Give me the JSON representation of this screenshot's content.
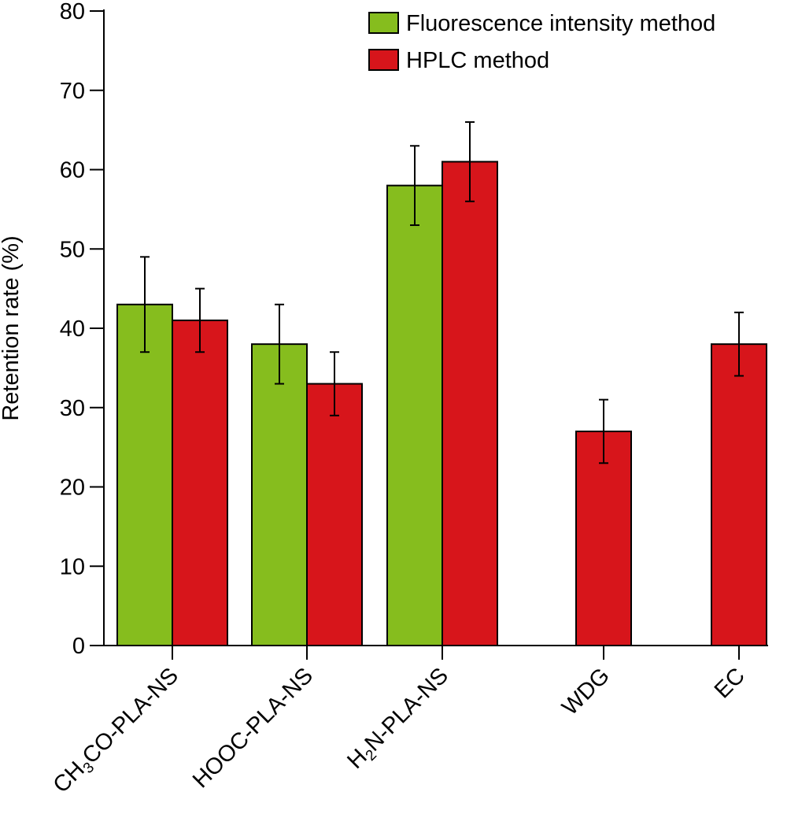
{
  "chart_data": {
    "type": "bar",
    "title": "",
    "xlabel": "",
    "ylabel": "Retention rate (%)",
    "ylim": [
      0,
      80
    ],
    "yticks": [
      0,
      10,
      20,
      30,
      40,
      50,
      60,
      70,
      80
    ],
    "grid": false,
    "legend_position": "top-right",
    "categories": [
      {
        "text": "CH3CO-PLA-NS",
        "parts": [
          {
            "t": "CH"
          },
          {
            "t": "3",
            "sub": true
          },
          {
            "t": "CO-PLA-NS"
          }
        ]
      },
      {
        "text": "HOOC-PLA-NS",
        "parts": [
          {
            "t": "HOOC-PLA-NS"
          }
        ]
      },
      {
        "text": "H2N-PLA-NS",
        "parts": [
          {
            "t": "H"
          },
          {
            "t": "2",
            "sub": true
          },
          {
            "t": "N-PLA-NS"
          }
        ]
      },
      {
        "text": "WDG",
        "parts": [
          {
            "t": "WDG"
          }
        ]
      },
      {
        "text": "EC",
        "parts": [
          {
            "t": "EC"
          }
        ]
      }
    ],
    "series": [
      {
        "name": "Fluorescence intensity method",
        "color": "#86bd1e",
        "values": [
          43,
          38,
          58,
          null,
          null
        ],
        "errors": [
          6,
          5,
          5,
          null,
          null
        ]
      },
      {
        "name": "HPLC method",
        "color": "#d7151b",
        "values": [
          41,
          33,
          61,
          27,
          38
        ],
        "errors": [
          4,
          4,
          5,
          4,
          4
        ]
      }
    ]
  }
}
